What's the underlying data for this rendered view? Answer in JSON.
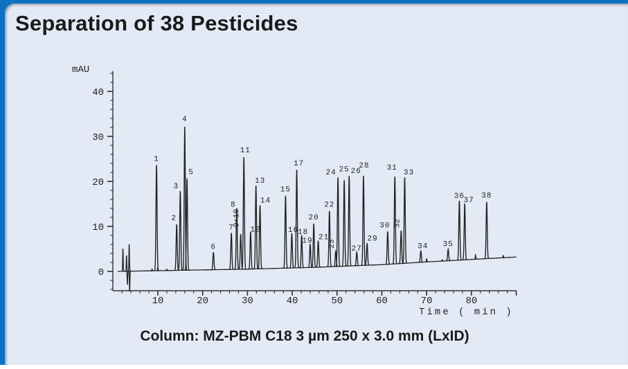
{
  "title": "Separation of 38 Pesticides",
  "caption": "Column: MZ-PBM C18 3 µm 250 x 3.0 mm (LxID)",
  "chart_data": {
    "type": "line",
    "title": "Separation of 38 Pesticides",
    "xlabel": "Time ( min )",
    "ylabel": "mAU",
    "xlim": [
      0,
      90
    ],
    "ylim": [
      -5,
      45
    ],
    "xticks": [
      10,
      20,
      30,
      40,
      50,
      60,
      70,
      80
    ],
    "yticks": [
      0,
      10,
      20,
      30,
      40
    ],
    "grid": false,
    "baseline": [
      [
        1,
        0
      ],
      [
        30,
        0.5
      ],
      [
        45,
        0.9
      ],
      [
        60,
        1.5
      ],
      [
        70,
        2.1
      ],
      [
        90,
        3.2
      ]
    ],
    "disturbances": [
      {
        "t": 2.2,
        "h": 5
      },
      {
        "t": 3.0,
        "h": 3.5
      },
      {
        "t": 3.2,
        "h": -3
      },
      {
        "t": 3.6,
        "h": 6
      },
      {
        "t": 3.7,
        "h": -4.5
      },
      {
        "t": 8.7,
        "h": 0.4
      },
      {
        "t": 10.0,
        "h": 0.8
      },
      {
        "t": 12.0,
        "h": 0.3
      },
      {
        "t": 70.0,
        "h": 0.7
      },
      {
        "t": 73.5,
        "h": 0.3
      },
      {
        "t": 80.9,
        "h": 1.0
      },
      {
        "t": 87.1,
        "h": 0.5
      }
    ],
    "peaks": [
      {
        "label": "1",
        "t": 9.7,
        "h": 23.5
      },
      {
        "label": "2",
        "t": 14.2,
        "h": 10.2
      },
      {
        "label": "3",
        "t": 15.0,
        "h": 17.6
      },
      {
        "label": "4",
        "t": 16.0,
        "h": 31.9
      },
      {
        "label": "5",
        "t": 16.5,
        "h": 20.4
      },
      {
        "label": "6",
        "t": 22.4,
        "h": 3.9
      },
      {
        "label": "7",
        "t": 26.4,
        "h": 8.1
      },
      {
        "label": "8",
        "t": 27.6,
        "h": 13.6
      },
      {
        "label": "9+10",
        "t": 28.5,
        "h": 7.8
      },
      {
        "label": "11",
        "t": 29.2,
        "h": 24.9
      },
      {
        "label": "12",
        "t": 30.7,
        "h": 8.3
      },
      {
        "label": "13",
        "t": 31.9,
        "h": 18.5
      },
      {
        "label": "14",
        "t": 32.8,
        "h": 14.1
      },
      {
        "label": "15",
        "t": 38.5,
        "h": 16.1
      },
      {
        "label": "16",
        "t": 39.9,
        "h": 7.7
      },
      {
        "label": "17",
        "t": 41.0,
        "h": 21.8
      },
      {
        "label": "18",
        "t": 42.1,
        "h": 7.2
      },
      {
        "label": "19",
        "t": 44.0,
        "h": 5.2
      },
      {
        "label": "20",
        "t": 44.8,
        "h": 9.7
      },
      {
        "label": "21",
        "t": 45.8,
        "h": 5.9
      },
      {
        "label": "22",
        "t": 48.3,
        "h": 12.4
      },
      {
        "label": "23",
        "t": 49.7,
        "h": 3.4
      },
      {
        "label": "24",
        "t": 50.2,
        "h": 19.8
      },
      {
        "label": "25",
        "t": 51.6,
        "h": 19.1
      },
      {
        "label": "26",
        "t": 52.7,
        "h": 20.0
      },
      {
        "label": "27",
        "t": 54.4,
        "h": 3.0
      },
      {
        "label": "28",
        "t": 55.9,
        "h": 19.9
      },
      {
        "label": "29",
        "t": 56.7,
        "h": 4.9
      },
      {
        "label": "30",
        "t": 61.3,
        "h": 7.3
      },
      {
        "label": "31",
        "t": 62.9,
        "h": 19.4
      },
      {
        "label": "32",
        "t": 64.3,
        "h": 7.3
      },
      {
        "label": "33",
        "t": 65.1,
        "h": 19.1
      },
      {
        "label": "34",
        "t": 68.7,
        "h": 2.5
      },
      {
        "label": "35",
        "t": 74.8,
        "h": 2.6
      },
      {
        "label": "36",
        "t": 77.3,
        "h": 13.2
      },
      {
        "label": "37",
        "t": 78.5,
        "h": 12.5
      },
      {
        "label": "38",
        "t": 83.4,
        "h": 12.6
      }
    ]
  }
}
